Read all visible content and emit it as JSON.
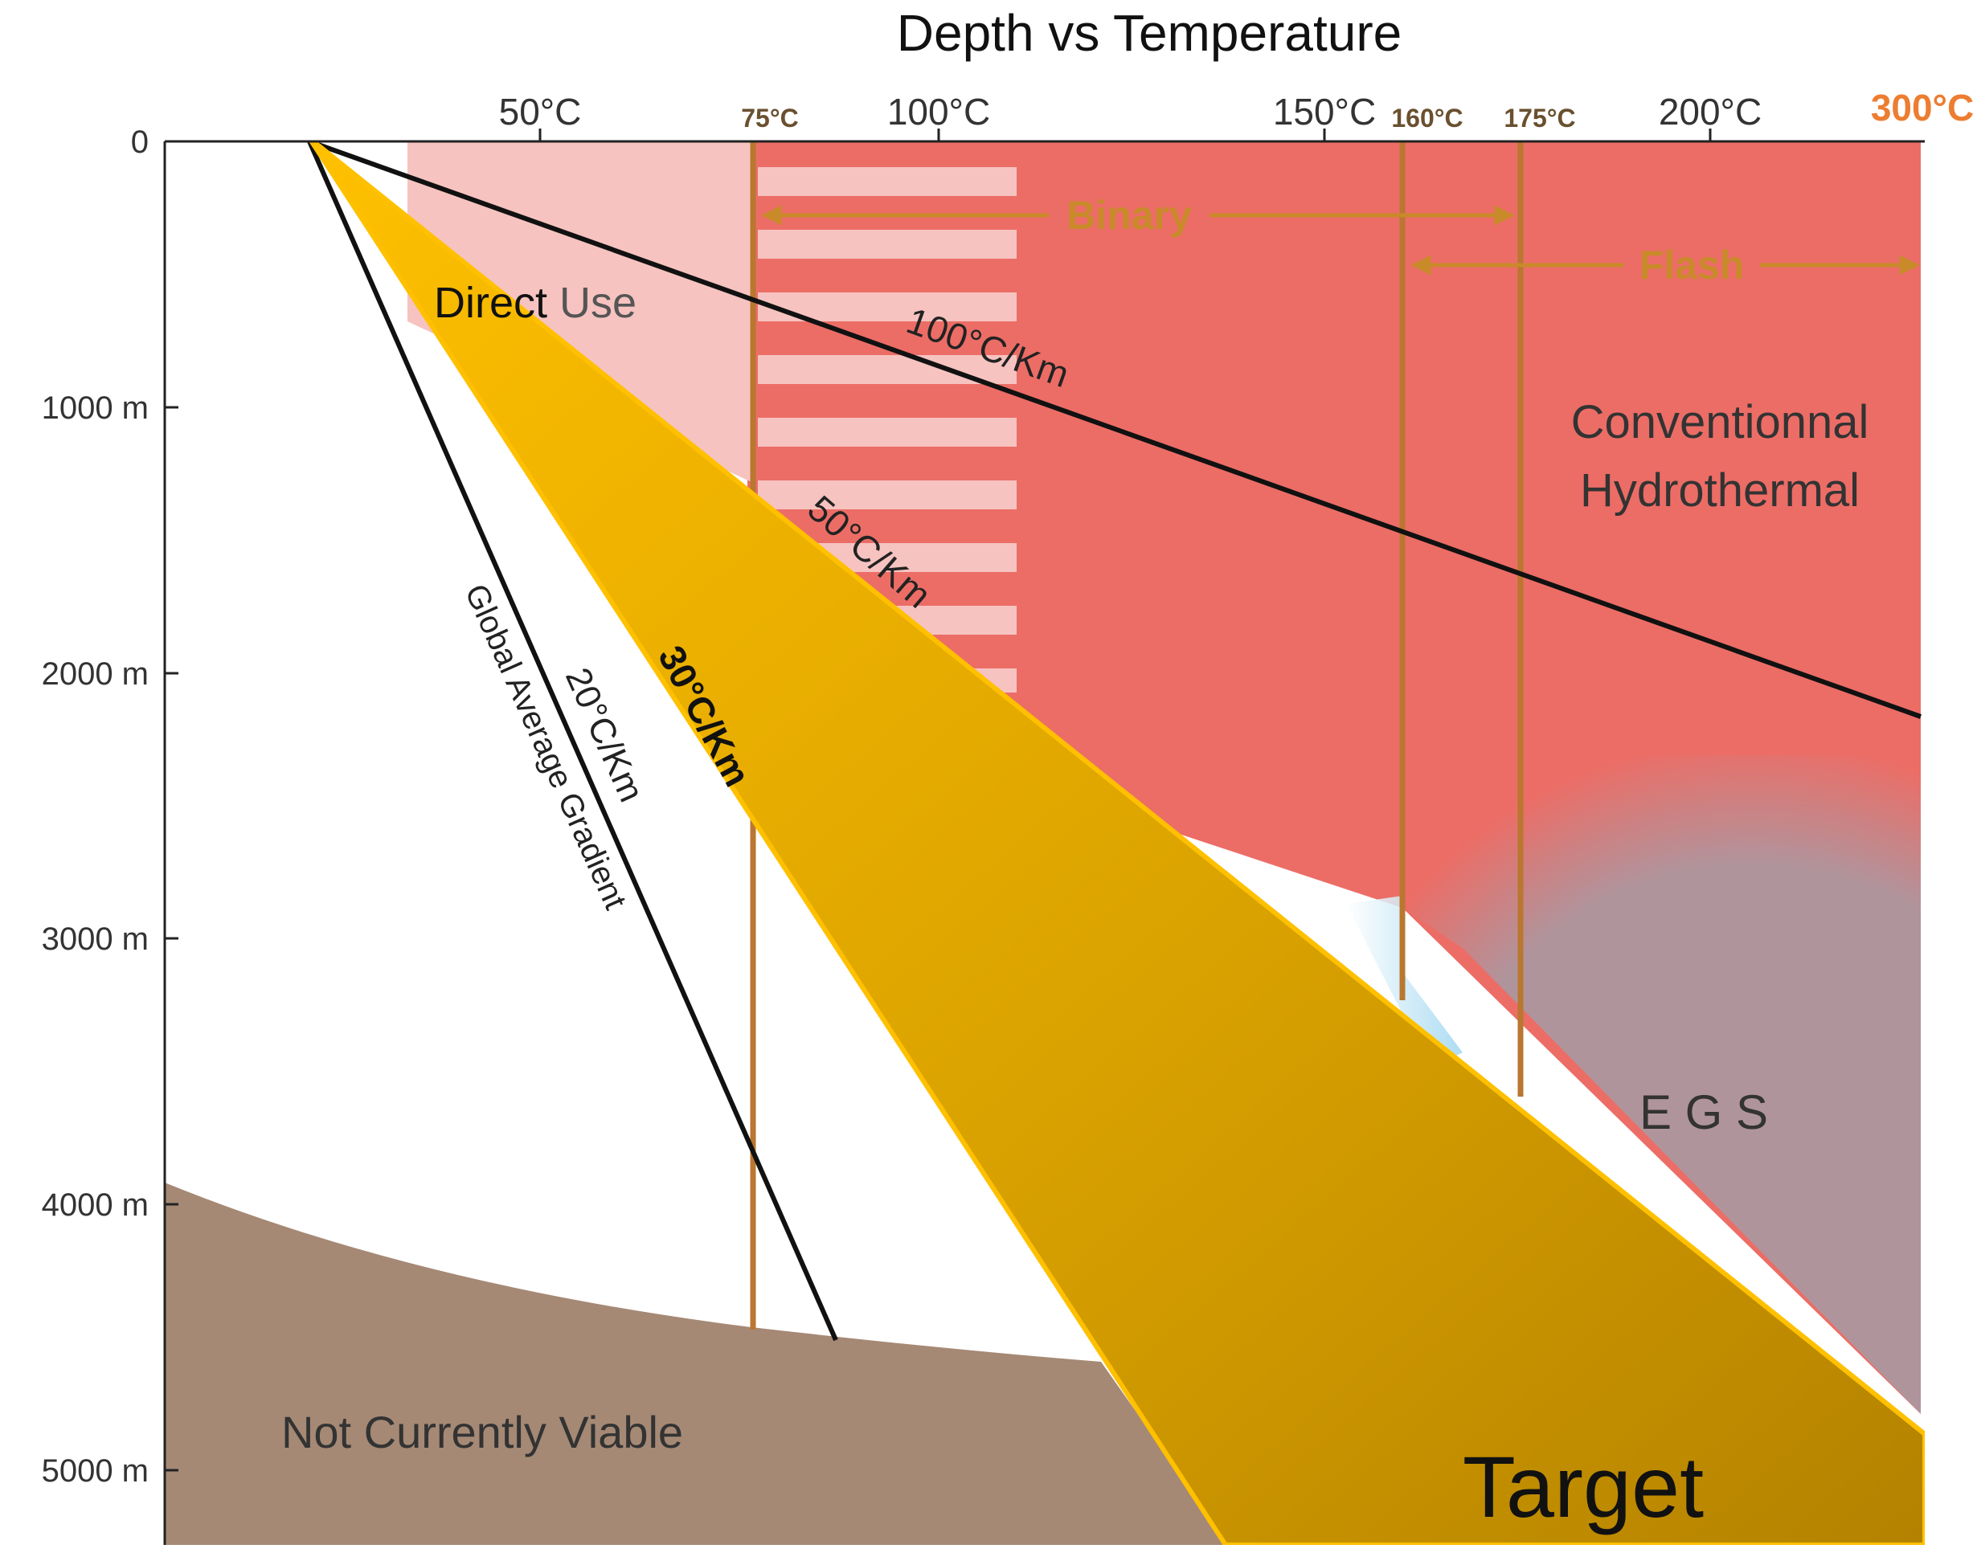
{
  "title": "Depth vs Temperature",
  "temp_ticks": [
    {
      "label": "50°C",
      "style": "normal"
    },
    {
      "label": "75°C",
      "style": "small"
    },
    {
      "label": "100°C",
      "style": "normal"
    },
    {
      "label": "150°C",
      "style": "normal"
    },
    {
      "label": "160°C",
      "style": "small"
    },
    {
      "label": "175°C",
      "style": "small"
    },
    {
      "label": "200°C",
      "style": "normal"
    },
    {
      "label": "300°C",
      "style": "accent"
    }
  ],
  "depth_ticks": [
    "0",
    "1000 m",
    "2000 m",
    "3000 m",
    "4000 m",
    "5000 m"
  ],
  "regions": {
    "direct_use": {
      "part1": "Direct",
      "part2": " Use"
    },
    "conventional": {
      "line1": "Conventionnal",
      "line2": "Hydrothermal"
    },
    "egs": "E G S",
    "not_viable": "Not  Currently Viable",
    "target": "Target"
  },
  "ranges": {
    "binary": "Binary",
    "flash": "Flash"
  },
  "gradients": {
    "g100": "100°C/Km",
    "g50": "50°C/Km",
    "g30": "30°C/Km",
    "g20": "20°C/Km",
    "global": "Global Average Gradient"
  },
  "colors": {
    "hydrothermal": "#ec6d66",
    "direct_use": "#f6c3c0",
    "egs": "#b0949c",
    "not_viable": "#a58975",
    "target_fill": "#e0a800",
    "target_edge": "#ffc000",
    "temp_line": "#b9772f",
    "accent": "#ed7d31",
    "range_label": "#c98a2a"
  }
}
